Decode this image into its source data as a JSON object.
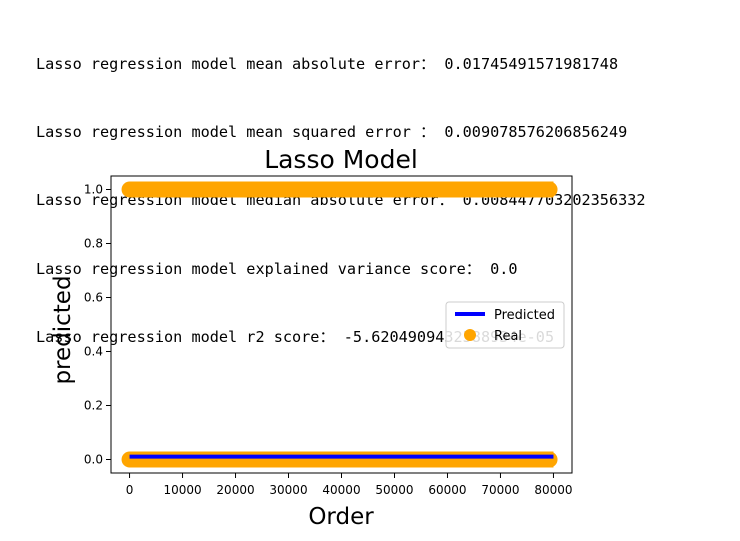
{
  "output_lines": [
    "Lasso regression model mean absolute error： 0.01745491571981748",
    "Lasso regression model mean squared error ： 0.009078576206856249",
    "Lasso regression model median absolute error： 0.008447703202356332",
    "Lasso regression model explained variance score： 0.0",
    "Lasso regression model r2 score： -5.6204909432588934e-05"
  ],
  "chart_data": {
    "type": "line+scatter",
    "title": "Lasso Model",
    "xlabel": "Order",
    "ylabel": "predicted",
    "xlim": [
      -3500,
      83500
    ],
    "ylim": [
      -0.05,
      1.05
    ],
    "xticks": [
      0,
      10000,
      20000,
      30000,
      40000,
      50000,
      60000,
      70000,
      80000
    ],
    "yticks": [
      0.0,
      0.2,
      0.4,
      0.6,
      0.8,
      1.0
    ],
    "xtick_labels": [
      "0",
      "10000",
      "20000",
      "30000",
      "40000",
      "50000",
      "60000",
      "70000",
      "80000"
    ],
    "ytick_labels": [
      "0.0",
      "0.2",
      "0.4",
      "0.6",
      "0.8",
      "1.0"
    ],
    "grid": false,
    "legend_position": "center-right",
    "series": [
      {
        "name": "Predicted",
        "kind": "line",
        "color": "#0000ff",
        "points": [
          [
            0,
            0.0107
          ],
          [
            80000,
            0.0107
          ]
        ]
      },
      {
        "name": "Real",
        "kind": "scatter",
        "color": "#ffa500",
        "x_range": [
          0,
          80000
        ],
        "y_values": [
          0.0,
          1.0
        ]
      }
    ]
  }
}
